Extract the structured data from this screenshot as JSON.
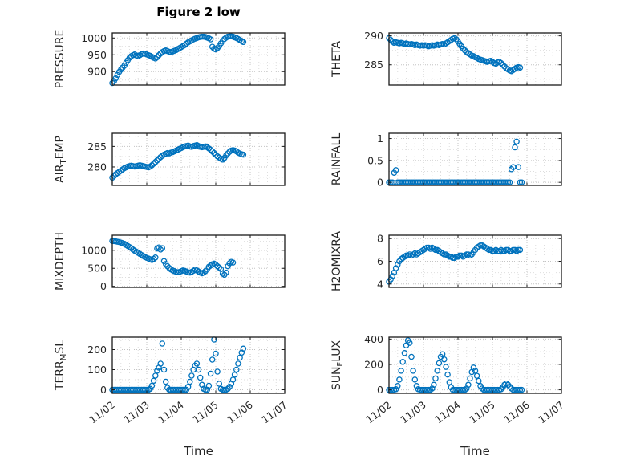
{
  "title": "Figure 2 low",
  "xlabel": "Time",
  "accent_color": "#0072BD",
  "xlim": [
    0,
    5
  ],
  "x_tick_values": [
    0,
    1,
    2,
    3,
    4,
    5
  ],
  "x_tick_labels": [
    "11/02",
    "11/03",
    "11/04",
    "11/05",
    "11/06",
    "11/07"
  ],
  "chart_data": [
    {
      "name": "pressure",
      "type": "scatter",
      "ylabel_prefix": "PRESSURE",
      "ylabel_sub": "",
      "ylabel_suffix": "",
      "ytick_values": [
        900,
        950,
        1000
      ],
      "ytick_labels": [
        "900",
        "950",
        "1000"
      ],
      "ylim": [
        860,
        1015
      ],
      "x": [
        0,
        0.05,
        0.1,
        0.15,
        0.2,
        0.25,
        0.3,
        0.35,
        0.4,
        0.45,
        0.5,
        0.55,
        0.6,
        0.65,
        0.7,
        0.75,
        0.8,
        0.85,
        0.9,
        0.95,
        1,
        1.05,
        1.1,
        1.15,
        1.2,
        1.25,
        1.3,
        1.35,
        1.4,
        1.45,
        1.5,
        1.55,
        1.6,
        1.65,
        1.7,
        1.75,
        1.8,
        1.85,
        1.9,
        1.95,
        2,
        2.05,
        2.1,
        2.15,
        2.2,
        2.25,
        2.3,
        2.35,
        2.4,
        2.45,
        2.5,
        2.55,
        2.6,
        2.65,
        2.7,
        2.75,
        2.8,
        2.85,
        2.9,
        2.95,
        3,
        3.05,
        3.1,
        3.15,
        3.2,
        3.25,
        3.3,
        3.35,
        3.4,
        3.45,
        3.5,
        3.55,
        3.6,
        3.65,
        3.7,
        3.75,
        3.8
      ],
      "y": [
        866,
        872,
        880,
        890,
        899,
        906,
        912,
        918,
        926,
        934,
        941,
        946,
        949,
        951,
        948,
        946,
        949,
        952,
        954,
        953,
        951,
        949,
        947,
        944,
        941,
        939,
        943,
        949,
        954,
        958,
        961,
        963,
        961,
        959,
        958,
        960,
        962,
        964,
        967,
        970,
        973,
        976,
        979,
        983,
        987,
        990,
        993,
        996,
        998,
        1000,
        1002,
        1003,
        1004,
        1004,
        1003,
        1001,
        999,
        996,
        974,
        968,
        966,
        970,
        976,
        984,
        991,
        997,
        1001,
        1004,
        1005,
        1005,
        1004,
        1002,
        1000,
        997,
        994,
        991,
        988
      ]
    },
    {
      "name": "theta",
      "type": "scatter",
      "ylabel_prefix": "THETA",
      "ylabel_sub": "",
      "ylabel_suffix": "",
      "ytick_values": [
        285,
        290
      ],
      "ytick_labels": [
        "285",
        "290"
      ],
      "ylim": [
        281.5,
        290.5
      ],
      "x": [
        0,
        0.05,
        0.1,
        0.15,
        0.2,
        0.25,
        0.3,
        0.35,
        0.4,
        0.45,
        0.5,
        0.55,
        0.6,
        0.65,
        0.7,
        0.75,
        0.8,
        0.85,
        0.9,
        0.95,
        1,
        1.05,
        1.1,
        1.15,
        1.2,
        1.25,
        1.3,
        1.35,
        1.4,
        1.45,
        1.5,
        1.55,
        1.6,
        1.65,
        1.7,
        1.75,
        1.8,
        1.85,
        1.9,
        1.95,
        2,
        2.05,
        2.1,
        2.15,
        2.2,
        2.25,
        2.3,
        2.35,
        2.4,
        2.45,
        2.5,
        2.55,
        2.6,
        2.65,
        2.7,
        2.75,
        2.8,
        2.85,
        2.9,
        2.95,
        3,
        3.05,
        3.1,
        3.15,
        3.2,
        3.25,
        3.3,
        3.35,
        3.4,
        3.45,
        3.5,
        3.55,
        3.6,
        3.65,
        3.7,
        3.75,
        3.8
      ],
      "y": [
        289.6,
        289.3,
        289.0,
        288.8,
        288.9,
        288.8,
        288.7,
        288.8,
        288.7,
        288.6,
        288.7,
        288.6,
        288.5,
        288.6,
        288.5,
        288.4,
        288.5,
        288.4,
        288.3,
        288.4,
        288.3,
        288.4,
        288.3,
        288.2,
        288.3,
        288.4,
        288.3,
        288.4,
        288.5,
        288.4,
        288.5,
        288.6,
        288.5,
        288.7,
        288.9,
        289.1,
        289.3,
        289.5,
        289.6,
        289.4,
        289.0,
        288.6,
        288.2,
        287.8,
        287.5,
        287.2,
        287.0,
        286.8,
        286.6,
        286.5,
        286.3,
        286.2,
        286.0,
        285.9,
        285.8,
        285.7,
        285.6,
        285.5,
        285.6,
        285.7,
        285.5,
        285.3,
        285.2,
        285.4,
        285.5,
        285.3,
        285.0,
        284.7,
        284.4,
        284.2,
        284.0,
        283.9,
        284.1,
        284.3,
        284.5,
        284.6,
        284.5
      ]
    },
    {
      "name": "air-temp",
      "type": "scatter",
      "ylabel_prefix": "AIR",
      "ylabel_sub": "T",
      "ylabel_suffix": "EMP",
      "ytick_values": [
        280,
        285
      ],
      "ytick_labels": [
        "280",
        "285"
      ],
      "ylim": [
        275.5,
        288.2
      ],
      "x": [
        0,
        0.05,
        0.1,
        0.15,
        0.2,
        0.25,
        0.3,
        0.35,
        0.4,
        0.45,
        0.5,
        0.55,
        0.6,
        0.65,
        0.7,
        0.75,
        0.8,
        0.85,
        0.9,
        0.95,
        1,
        1.05,
        1.1,
        1.15,
        1.2,
        1.25,
        1.3,
        1.35,
        1.4,
        1.45,
        1.5,
        1.55,
        1.6,
        1.65,
        1.7,
        1.75,
        1.8,
        1.85,
        1.9,
        1.95,
        2,
        2.05,
        2.1,
        2.15,
        2.2,
        2.25,
        2.3,
        2.35,
        2.4,
        2.45,
        2.5,
        2.55,
        2.6,
        2.65,
        2.7,
        2.75,
        2.8,
        2.85,
        2.9,
        2.95,
        3,
        3.05,
        3.1,
        3.15,
        3.2,
        3.25,
        3.3,
        3.35,
        3.4,
        3.45,
        3.5,
        3.55,
        3.6,
        3.65,
        3.7,
        3.75,
        3.8
      ],
      "y": [
        277.4,
        277.8,
        278.2,
        278.5,
        278.8,
        279.1,
        279.4,
        279.7,
        279.9,
        280.1,
        280.2,
        280.3,
        280.2,
        280.1,
        280.2,
        280.3,
        280.4,
        280.3,
        280.2,
        280.1,
        280.0,
        279.9,
        280.1,
        280.4,
        280.8,
        281.2,
        281.6,
        282.0,
        282.4,
        282.7,
        283.0,
        283.2,
        283.4,
        283.3,
        283.5,
        283.6,
        283.8,
        284.0,
        284.2,
        284.4,
        284.6,
        284.8,
        285.0,
        285.1,
        285.2,
        285.0,
        284.9,
        285.1,
        285.2,
        285.3,
        285.1,
        284.9,
        284.8,
        284.9,
        285.0,
        284.8,
        284.5,
        284.2,
        283.8,
        283.4,
        283.0,
        282.6,
        282.3,
        282.0,
        281.8,
        282.2,
        282.8,
        283.3,
        283.7,
        284.0,
        284.1,
        284.0,
        283.8,
        283.5,
        283.3,
        283.1,
        283.0
      ]
    },
    {
      "name": "rainfall",
      "type": "scatter",
      "ylabel_prefix": "RAINFALL",
      "ylabel_sub": "",
      "ylabel_suffix": "",
      "ytick_values": [
        0,
        0.5,
        1
      ],
      "ytick_labels": [
        "0",
        "0.5",
        "1"
      ],
      "ylim": [
        -0.07,
        1.12
      ],
      "x": [
        0,
        0.05,
        0.1,
        0.15,
        0.2,
        0.25,
        0.3,
        0.35,
        0.4,
        0.45,
        0.5,
        0.55,
        0.6,
        0.65,
        0.7,
        0.75,
        0.8,
        0.85,
        0.9,
        0.95,
        1,
        1.05,
        1.1,
        1.15,
        1.2,
        1.25,
        1.3,
        1.35,
        1.4,
        1.45,
        1.5,
        1.55,
        1.6,
        1.65,
        1.7,
        1.75,
        1.8,
        1.85,
        1.9,
        1.95,
        2,
        2.05,
        2.1,
        2.15,
        2.2,
        2.25,
        2.3,
        2.35,
        2.4,
        2.45,
        2.5,
        2.55,
        2.6,
        2.65,
        2.7,
        2.75,
        2.8,
        2.85,
        2.9,
        2.95,
        3,
        3.05,
        3.1,
        3.15,
        3.2,
        3.25,
        3.3,
        3.35,
        3.4,
        3.45,
        3.5,
        3.55,
        3.6,
        3.65,
        3.7,
        3.75,
        3.8,
        3.85
      ],
      "y": [
        0,
        0,
        0,
        0.22,
        0.28,
        0,
        0,
        0,
        0,
        0,
        0,
        0,
        0,
        0,
        0,
        0,
        0,
        0,
        0,
        0,
        0,
        0,
        0,
        0,
        0,
        0,
        0,
        0,
        0,
        0,
        0,
        0,
        0,
        0,
        0,
        0,
        0,
        0,
        0,
        0,
        0,
        0,
        0,
        0,
        0,
        0,
        0,
        0,
        0,
        0,
        0,
        0,
        0,
        0,
        0,
        0,
        0,
        0,
        0,
        0,
        0,
        0,
        0,
        0,
        0,
        0,
        0,
        0,
        0,
        0,
        0,
        0.3,
        0.35,
        0.8,
        0.93,
        0.35,
        0,
        0
      ]
    },
    {
      "name": "mixdepth",
      "type": "scatter",
      "ylabel_prefix": "MIXDEPTH",
      "ylabel_sub": "",
      "ylabel_suffix": "",
      "ytick_values": [
        0,
        500,
        1000
      ],
      "ytick_labels": [
        "0",
        "500",
        "1000"
      ],
      "ylim": [
        -30,
        1420
      ],
      "x": [
        0,
        0.05,
        0.1,
        0.15,
        0.2,
        0.25,
        0.3,
        0.35,
        0.4,
        0.45,
        0.5,
        0.55,
        0.6,
        0.65,
        0.7,
        0.75,
        0.8,
        0.85,
        0.9,
        0.95,
        1,
        1.05,
        1.1,
        1.15,
        1.2,
        1.25,
        1.3,
        1.35,
        1.4,
        1.45,
        1.5,
        1.55,
        1.6,
        1.65,
        1.7,
        1.75,
        1.8,
        1.85,
        1.9,
        1.95,
        2,
        2.05,
        2.1,
        2.15,
        2.2,
        2.25,
        2.3,
        2.35,
        2.4,
        2.45,
        2.5,
        2.55,
        2.6,
        2.65,
        2.7,
        2.75,
        2.8,
        2.85,
        2.9,
        2.95,
        3,
        3.05,
        3.1,
        3.15,
        3.2,
        3.25,
        3.3,
        3.35,
        3.4,
        3.45,
        3.5
      ],
      "y": [
        1260,
        1255,
        1250,
        1240,
        1230,
        1215,
        1200,
        1180,
        1150,
        1120,
        1090,
        1060,
        1020,
        990,
        960,
        930,
        900,
        870,
        840,
        810,
        790,
        770,
        750,
        730,
        760,
        800,
        1050,
        1080,
        1020,
        1060,
        700,
        620,
        560,
        510,
        470,
        440,
        420,
        400,
        390,
        400,
        420,
        440,
        430,
        410,
        390,
        380,
        400,
        430,
        460,
        440,
        410,
        380,
        360,
        380,
        420,
        480,
        540,
        580,
        610,
        630,
        600,
        560,
        520,
        480,
        350,
        320,
        380,
        560,
        640,
        680,
        660
      ]
    },
    {
      "name": "h2omixra",
      "type": "scatter",
      "ylabel_prefix": "H2OMIXRA",
      "ylabel_sub": "",
      "ylabel_suffix": "",
      "ytick_values": [
        4,
        6,
        8
      ],
      "ytick_labels": [
        "4",
        "6",
        "8"
      ],
      "ylim": [
        3.7,
        8.3
      ],
      "x": [
        0,
        0.05,
        0.1,
        0.15,
        0.2,
        0.25,
        0.3,
        0.35,
        0.4,
        0.45,
        0.5,
        0.55,
        0.6,
        0.65,
        0.7,
        0.75,
        0.8,
        0.85,
        0.9,
        0.95,
        1,
        1.05,
        1.1,
        1.15,
        1.2,
        1.25,
        1.3,
        1.35,
        1.4,
        1.45,
        1.5,
        1.55,
        1.6,
        1.65,
        1.7,
        1.75,
        1.8,
        1.85,
        1.9,
        1.95,
        2,
        2.05,
        2.1,
        2.15,
        2.2,
        2.25,
        2.3,
        2.35,
        2.4,
        2.45,
        2.5,
        2.55,
        2.6,
        2.65,
        2.7,
        2.75,
        2.8,
        2.85,
        2.9,
        2.95,
        3,
        3.05,
        3.1,
        3.15,
        3.2,
        3.25,
        3.3,
        3.35,
        3.4,
        3.45,
        3.5,
        3.55,
        3.6,
        3.65,
        3.7,
        3.75,
        3.8
      ],
      "y": [
        4.2,
        4.4,
        4.7,
        5.0,
        5.4,
        5.7,
        6.0,
        6.2,
        6.3,
        6.4,
        6.5,
        6.5,
        6.6,
        6.5,
        6.6,
        6.7,
        6.6,
        6.7,
        6.8,
        6.9,
        7.0,
        7.1,
        7.2,
        7.2,
        7.1,
        7.2,
        7.1,
        7.0,
        7.0,
        6.9,
        6.8,
        6.7,
        6.6,
        6.6,
        6.5,
        6.4,
        6.4,
        6.3,
        6.3,
        6.4,
        6.4,
        6.5,
        6.5,
        6.4,
        6.5,
        6.6,
        6.6,
        6.5,
        6.6,
        6.8,
        7.0,
        7.2,
        7.3,
        7.4,
        7.4,
        7.3,
        7.2,
        7.1,
        7.0,
        7.0,
        6.9,
        6.9,
        7.0,
        6.9,
        6.9,
        7.0,
        6.9,
        6.9,
        7.0,
        7.0,
        6.9,
        6.9,
        7.0,
        7.0,
        6.9,
        7.0,
        7.0
      ]
    },
    {
      "name": "terr-msl",
      "type": "scatter",
      "ylabel_prefix": "TERR",
      "ylabel_sub": "M",
      "ylabel_suffix": "SL",
      "ytick_values": [
        0,
        100,
        200
      ],
      "ytick_labels": [
        "0",
        "100",
        "200"
      ],
      "ylim": [
        -18,
        262
      ],
      "x": [
        0,
        0.05,
        0.1,
        0.15,
        0.2,
        0.25,
        0.3,
        0.35,
        0.4,
        0.45,
        0.5,
        0.55,
        0.6,
        0.65,
        0.7,
        0.75,
        0.8,
        0.85,
        0.9,
        0.95,
        1,
        1.05,
        1.1,
        1.15,
        1.2,
        1.25,
        1.3,
        1.35,
        1.4,
        1.45,
        1.5,
        1.55,
        1.6,
        1.65,
        1.7,
        1.75,
        1.8,
        1.85,
        1.9,
        1.95,
        2,
        2.05,
        2.1,
        2.15,
        2.2,
        2.25,
        2.3,
        2.35,
        2.4,
        2.45,
        2.5,
        2.55,
        2.6,
        2.65,
        2.7,
        2.75,
        2.8,
        2.85,
        2.9,
        2.95,
        3,
        3.05,
        3.1,
        3.15,
        3.2,
        3.25,
        3.3,
        3.35,
        3.4,
        3.45,
        3.5,
        3.55,
        3.6,
        3.65,
        3.7,
        3.75,
        3.8
      ],
      "y": [
        0,
        0,
        0,
        0,
        0,
        0,
        0,
        0,
        0,
        0,
        0,
        0,
        0,
        0,
        0,
        0,
        0,
        0,
        0,
        0,
        0,
        0,
        5,
        20,
        45,
        70,
        95,
        110,
        130,
        230,
        100,
        40,
        10,
        0,
        0,
        0,
        0,
        0,
        0,
        0,
        0,
        0,
        0,
        0,
        15,
        40,
        70,
        100,
        120,
        130,
        100,
        60,
        25,
        5,
        0,
        0,
        20,
        80,
        150,
        250,
        180,
        90,
        30,
        5,
        0,
        0,
        0,
        5,
        15,
        30,
        50,
        75,
        100,
        130,
        160,
        185,
        205
      ]
    },
    {
      "name": "sun-flux",
      "type": "scatter",
      "ylabel_prefix": "SUN",
      "ylabel_sub": "F",
      "ylabel_suffix": "LUX",
      "ytick_values": [
        0,
        200,
        400
      ],
      "ytick_labels": [
        "0",
        "200",
        "400"
      ],
      "ylim": [
        -28,
        415
      ],
      "x": [
        0,
        0.05,
        0.1,
        0.15,
        0.2,
        0.25,
        0.3,
        0.35,
        0.4,
        0.45,
        0.5,
        0.55,
        0.6,
        0.65,
        0.7,
        0.75,
        0.8,
        0.85,
        0.9,
        0.95,
        1,
        1.05,
        1.1,
        1.15,
        1.2,
        1.25,
        1.3,
        1.35,
        1.4,
        1.45,
        1.5,
        1.55,
        1.6,
        1.65,
        1.7,
        1.75,
        1.8,
        1.85,
        1.9,
        1.95,
        2,
        2.05,
        2.1,
        2.15,
        2.2,
        2.25,
        2.3,
        2.35,
        2.4,
        2.45,
        2.5,
        2.55,
        2.6,
        2.65,
        2.7,
        2.75,
        2.8,
        2.85,
        2.9,
        2.95,
        3,
        3.05,
        3.1,
        3.15,
        3.2,
        3.25,
        3.3,
        3.35,
        3.4,
        3.45,
        3.5,
        3.55,
        3.6,
        3.65,
        3.7,
        3.75,
        3.8,
        3.85
      ],
      "y": [
        0,
        0,
        0,
        0,
        5,
        30,
        80,
        150,
        220,
        290,
        350,
        390,
        370,
        260,
        150,
        80,
        30,
        5,
        0,
        0,
        0,
        0,
        0,
        0,
        0,
        10,
        40,
        90,
        150,
        210,
        260,
        280,
        240,
        180,
        120,
        60,
        20,
        0,
        0,
        0,
        0,
        0,
        0,
        0,
        0,
        10,
        40,
        90,
        140,
        175,
        150,
        110,
        70,
        30,
        10,
        0,
        0,
        0,
        0,
        0,
        0,
        0,
        0,
        0,
        0,
        5,
        20,
        40,
        50,
        40,
        25,
        10,
        0,
        0,
        0,
        0,
        0,
        0
      ]
    }
  ]
}
